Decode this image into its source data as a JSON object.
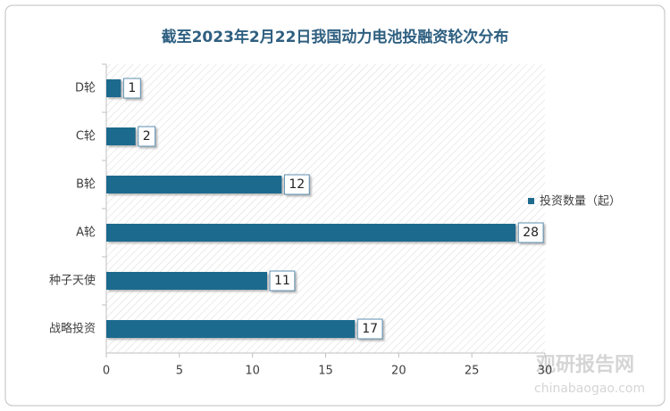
{
  "chart_data": {
    "type": "bar",
    "orientation": "horizontal",
    "title": "截至2023年2月22日我国动力电池投融资轮次分布",
    "categories": [
      "D轮",
      "C轮",
      "B轮",
      "A轮",
      "种子天使",
      "战略投资"
    ],
    "series": [
      {
        "name": "投资数量（起）",
        "color": "#1f6b8e",
        "values": [
          1,
          2,
          12,
          28,
          11,
          17
        ]
      }
    ],
    "xlim": [
      0,
      30
    ],
    "xticks": [
      0,
      5,
      10,
      15,
      20,
      25,
      30
    ],
    "legend": "right",
    "watermark": [
      "观研报告网",
      "chinabaogao.com"
    ]
  }
}
